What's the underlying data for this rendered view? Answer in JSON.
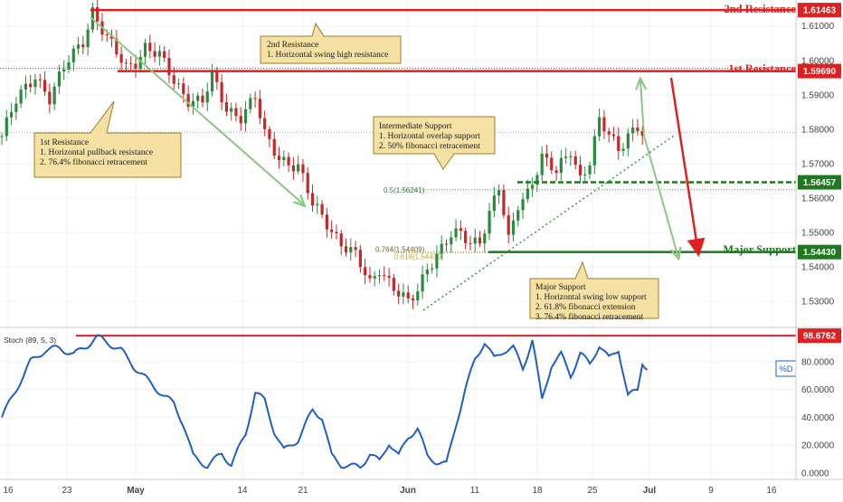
{
  "chart_data": [
    {
      "type": "candlestick",
      "title": "",
      "ylim": [
        1.5245,
        1.6165
      ],
      "y_ticks": [
        "1.61000",
        "1.60000",
        "1.59000",
        "1.58000",
        "1.57000",
        "1.56000",
        "1.55000",
        "1.54000",
        "1.53000"
      ],
      "y_tick_values": [
        1.61,
        1.6,
        1.59,
        1.58,
        1.57,
        1.56,
        1.55,
        1.54,
        1.53
      ],
      "x_ticks": [
        "16",
        "23",
        "May",
        "14",
        "21",
        "Jun",
        "11",
        "18",
        "25",
        "Jul",
        "9",
        "16"
      ],
      "grid": true,
      "last_price": 1.5791,
      "waypoints": [
        [
          0,
          1.578
        ],
        [
          3,
          1.588
        ],
        [
          7,
          1.596
        ],
        [
          10,
          1.589
        ],
        [
          14,
          1.6
        ],
        [
          17,
          1.606
        ],
        [
          19,
          1.6146
        ],
        [
          22,
          1.606
        ],
        [
          26,
          1.598
        ],
        [
          28,
          1.6
        ],
        [
          30,
          1.604
        ],
        [
          33,
          1.601
        ],
        [
          36,
          1.594
        ],
        [
          39,
          1.589
        ],
        [
          42,
          1.588
        ],
        [
          44,
          1.595
        ],
        [
          47,
          1.586
        ],
        [
          50,
          1.584
        ],
        [
          53,
          1.589
        ],
        [
          55,
          1.578
        ],
        [
          58,
          1.572
        ],
        [
          62,
          1.569
        ],
        [
          65,
          1.558
        ],
        [
          68,
          1.553
        ],
        [
          71,
          1.547
        ],
        [
          74,
          1.543
        ],
        [
          77,
          1.535
        ],
        [
          79,
          1.54
        ],
        [
          82,
          1.534
        ],
        [
          85,
          1.529
        ],
        [
          87,
          1.533
        ],
        [
          89,
          1.54
        ],
        [
          91,
          1.544
        ],
        [
          94,
          1.549
        ],
        [
          96,
          1.549
        ],
        [
          98,
          1.547
        ],
        [
          100,
          1.548
        ],
        [
          102,
          1.556
        ],
        [
          104,
          1.563
        ],
        [
          106,
          1.547
        ],
        [
          108,
          1.558
        ],
        [
          110,
          1.562
        ],
        [
          113,
          1.572
        ],
        [
          116,
          1.567
        ],
        [
          119,
          1.574
        ],
        [
          121,
          1.566
        ],
        [
          123,
          1.571
        ],
        [
          125,
          1.582
        ],
        [
          127,
          1.578
        ],
        [
          129,
          1.574
        ],
        [
          131,
          1.579
        ],
        [
          133,
          1.581
        ],
        [
          134,
          1.579
        ]
      ],
      "levels": [
        {
          "name": "2nd Resistance",
          "value": 1.61463,
          "label": "1.61463",
          "color": "#e02020"
        },
        {
          "name": "1st Resistance",
          "value": 1.5969,
          "label": "1.59690",
          "color": "#e02020"
        },
        {
          "name": "Intermediate Support",
          "value": 1.56457,
          "label": "1.56457",
          "color": "#1e7a1e"
        },
        {
          "name": "Major Support",
          "value": 1.5443,
          "label": "1.54430",
          "color": "#1e7a1e"
        }
      ],
      "fib_labels": [
        {
          "text": "0.5(1.56241)",
          "value": 1.56241
        },
        {
          "text": "0.764(1.54409)",
          "value": 1.54409
        },
        {
          "text": "0.618(1.54430)",
          "value": 1.5443
        }
      ],
      "level_titles": {
        "r2": "2nd Resistance",
        "r1": "1st Resistance",
        "major": "Major Support"
      },
      "annotations": {
        "r2": {
          "title": "2nd Resistance",
          "lines": [
            "1. Horizontal swing high resistance"
          ]
        },
        "r1": {
          "title": "1st Resistance",
          "lines": [
            "1. Horizontal pullback resistance",
            "2. 76.4% fibonacci retracement"
          ]
        },
        "inter": {
          "title": "Intermediate Support",
          "lines": [
            "1. Horizontal overlap support",
            "2. 50% fibonacci retracement"
          ]
        },
        "major": {
          "title": "Major Support",
          "lines": [
            "1. Horizontal swing low support",
            "2. 61.8% fibonacci extension",
            "3. 76.4% fibonacci retracement"
          ]
        }
      }
    },
    {
      "type": "line",
      "title": "Stoch (89, 5, 3)",
      "series_name": "%D",
      "ylim": [
        -2,
        102
      ],
      "y_ticks": [
        "80.0000",
        "60.0000",
        "40.0000",
        "20.0000",
        "0.0000"
      ],
      "y_tick_values": [
        80,
        60,
        40,
        20,
        0
      ],
      "level": {
        "value": 98.6762,
        "label": "98.6762"
      },
      "line_color": "#1f5fc4",
      "waypoints": [
        [
          0,
          40
        ],
        [
          3,
          60
        ],
        [
          6,
          80
        ],
        [
          9,
          88
        ],
        [
          12,
          90
        ],
        [
          15,
          85
        ],
        [
          18,
          92
        ],
        [
          20,
          98
        ],
        [
          22,
          94
        ],
        [
          25,
          88
        ],
        [
          28,
          75
        ],
        [
          31,
          65
        ],
        [
          34,
          55
        ],
        [
          36,
          50
        ],
        [
          38,
          35
        ],
        [
          40,
          12
        ],
        [
          43,
          5
        ],
        [
          46,
          14
        ],
        [
          48,
          6
        ],
        [
          51,
          28
        ],
        [
          53,
          58
        ],
        [
          55,
          52
        ],
        [
          57,
          30
        ],
        [
          59,
          16
        ],
        [
          62,
          24
        ],
        [
          65,
          45
        ],
        [
          67,
          40
        ],
        [
          69,
          12
        ],
        [
          71,
          6
        ],
        [
          73,
          5
        ],
        [
          75,
          4
        ],
        [
          77,
          14
        ],
        [
          79,
          8
        ],
        [
          81,
          22
        ],
        [
          83,
          12
        ],
        [
          85,
          26
        ],
        [
          87,
          32
        ],
        [
          89,
          12
        ],
        [
          91,
          8
        ],
        [
          93,
          6
        ],
        [
          95,
          35
        ],
        [
          97,
          60
        ],
        [
          99,
          82
        ],
        [
          101,
          94
        ],
        [
          103,
          82
        ],
        [
          105,
          88
        ],
        [
          107,
          90
        ],
        [
          109,
          75
        ],
        [
          111,
          96
        ],
        [
          113,
          52
        ],
        [
          115,
          78
        ],
        [
          117,
          85
        ],
        [
          119,
          70
        ],
        [
          121,
          86
        ],
        [
          123,
          78
        ],
        [
          125,
          92
        ],
        [
          127,
          82
        ],
        [
          129,
          89
        ],
        [
          131,
          55
        ],
        [
          133,
          60
        ],
        [
          134,
          80
        ],
        [
          135,
          75
        ]
      ]
    }
  ]
}
